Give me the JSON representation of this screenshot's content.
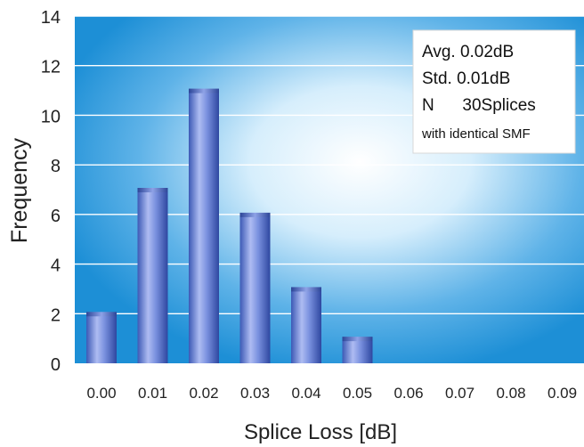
{
  "chart_data": {
    "type": "bar",
    "categories": [
      "0.00",
      "0.01",
      "0.02",
      "0.03",
      "0.04",
      "0.05",
      "0.06",
      "0.07",
      "0.08",
      "0.09"
    ],
    "values": [
      2,
      7,
      11,
      6,
      3,
      1,
      0,
      0,
      0,
      0
    ],
    "xlabel": "Splice Loss [dB]",
    "ylabel": "Frequency",
    "ylim": [
      0,
      14
    ],
    "yticks": [
      0,
      2,
      4,
      6,
      8,
      10,
      12,
      14
    ],
    "grid": true,
    "legend_placement": "top-right",
    "annotation_lines": [
      "Avg. 0.02dB",
      "Std. 0.01dB",
      "N      30Splices",
      "with identical SMF"
    ],
    "colors": {
      "bar": "#4f6fc8",
      "bar_highlight": "#aebcf2",
      "plot_bg_edge": "#1d8fd6",
      "plot_bg_center": "#ffffff",
      "gridline": "#ffffff"
    }
  }
}
